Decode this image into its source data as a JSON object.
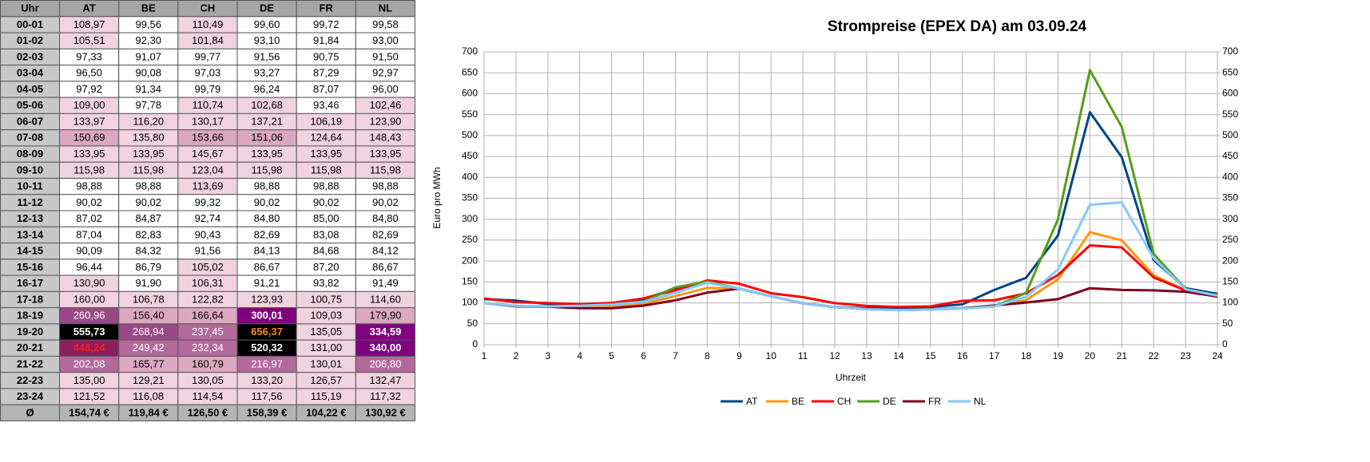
{
  "table": {
    "header": [
      "Uhr",
      "AT",
      "BE",
      "CH",
      "DE",
      "FR",
      "NL"
    ],
    "rows": [
      [
        "00-01",
        "108,97",
        "99,56",
        "110,49",
        "99,60",
        "99,72",
        "99,58"
      ],
      [
        "01-02",
        "105,51",
        "92,30",
        "101,84",
        "93,10",
        "91,84",
        "93,00"
      ],
      [
        "02-03",
        "97,33",
        "91,07",
        "99,77",
        "91,56",
        "90,75",
        "91,50"
      ],
      [
        "03-04",
        "96,50",
        "90,08",
        "97,03",
        "93,27",
        "87,29",
        "92,97"
      ],
      [
        "04-05",
        "97,92",
        "91,34",
        "99,79",
        "96,24",
        "87,07",
        "96,00"
      ],
      [
        "05-06",
        "109,00",
        "97,78",
        "110,74",
        "102,68",
        "93,46",
        "102,46"
      ],
      [
        "06-07",
        "133,97",
        "116,20",
        "130,17",
        "137,21",
        "106,19",
        "123,90"
      ],
      [
        "07-08",
        "150,69",
        "135,80",
        "153,66",
        "151,06",
        "124,64",
        "148,43"
      ],
      [
        "08-09",
        "133,95",
        "133,95",
        "145,67",
        "133,95",
        "133,95",
        "133,95"
      ],
      [
        "09-10",
        "115,98",
        "115,98",
        "123,04",
        "115,98",
        "115,98",
        "115,98"
      ],
      [
        "10-11",
        "98,88",
        "98,88",
        "113,69",
        "98,88",
        "98,88",
        "98,88"
      ],
      [
        "11-12",
        "90,02",
        "90,02",
        "99,32",
        "90,02",
        "90,02",
        "90,02"
      ],
      [
        "12-13",
        "87,02",
        "84,87",
        "92,74",
        "84,80",
        "85,00",
        "84,80"
      ],
      [
        "13-14",
        "87,04",
        "82,83",
        "90,43",
        "82,69",
        "83,08",
        "82,69"
      ],
      [
        "14-15",
        "90,09",
        "84,32",
        "91,56",
        "84,13",
        "84,68",
        "84,12"
      ],
      [
        "15-16",
        "96,44",
        "86,79",
        "105,02",
        "86,67",
        "87,20",
        "86,67"
      ],
      [
        "16-17",
        "130,90",
        "91,90",
        "106,31",
        "91,21",
        "93,82",
        "91,49"
      ],
      [
        "17-18",
        "160,00",
        "106,78",
        "122,82",
        "123,93",
        "100,75",
        "114,60"
      ],
      [
        "18-19",
        "260,96",
        "156,40",
        "166,64",
        "300,01",
        "109,03",
        "179,90"
      ],
      [
        "19-20",
        "555,73",
        "268,94",
        "237,45",
        "656,37",
        "135,05",
        "334,59"
      ],
      [
        "20-21",
        "448,24",
        "249,42",
        "232,34",
        "520,32",
        "131,00",
        "340,00"
      ],
      [
        "21-22",
        "202,08",
        "165,77",
        "160,79",
        "216,97",
        "130,01",
        "206,80"
      ],
      [
        "22-23",
        "135,00",
        "129,21",
        "130,05",
        "133,20",
        "126,57",
        "132,47"
      ],
      [
        "23-24",
        "121,52",
        "116,08",
        "114,54",
        "117,56",
        "115,19",
        "117,32"
      ]
    ],
    "footer": [
      "Ø",
      "154,74 €",
      "119,84 €",
      "126,50 €",
      "158,39 €",
      "104,22 €",
      "130,92 €"
    ],
    "cell_fills": [
      [
        "#f0d3df",
        "#ffffff",
        "#f0d3df",
        "#ffffff",
        "#ffffff",
        "#ffffff"
      ],
      [
        "#f0d3df",
        "#ffffff",
        "#f0d3df",
        "#ffffff",
        "#ffffff",
        "#ffffff"
      ],
      [
        "#ffffff",
        "#ffffff",
        "#ffffff",
        "#ffffff",
        "#ffffff",
        "#ffffff"
      ],
      [
        "#ffffff",
        "#ffffff",
        "#ffffff",
        "#ffffff",
        "#ffffff",
        "#ffffff"
      ],
      [
        "#ffffff",
        "#ffffff",
        "#ffffff",
        "#ffffff",
        "#ffffff",
        "#ffffff"
      ],
      [
        "#f0d3df",
        "#ffffff",
        "#f0d3df",
        "#f0d3df",
        "#ffffff",
        "#f0d3df"
      ],
      [
        "#f0d3df",
        "#f0d3df",
        "#f0d3df",
        "#f0d3df",
        "#f0d3df",
        "#f0d3df"
      ],
      [
        "#dba8c0",
        "#f0d3df",
        "#dba8c0",
        "#dba8c0",
        "#f0d3df",
        "#f0d3df"
      ],
      [
        "#f0d3df",
        "#f0d3df",
        "#f0d3df",
        "#f0d3df",
        "#f0d3df",
        "#f0d3df"
      ],
      [
        "#f0d3df",
        "#f0d3df",
        "#f0d3df",
        "#f0d3df",
        "#f0d3df",
        "#f0d3df"
      ],
      [
        "#ffffff",
        "#ffffff",
        "#f0d3df",
        "#ffffff",
        "#ffffff",
        "#ffffff"
      ],
      [
        "#ffffff",
        "#ffffff",
        "#ffffff",
        "#ffffff",
        "#ffffff",
        "#ffffff"
      ],
      [
        "#ffffff",
        "#ffffff",
        "#ffffff",
        "#ffffff",
        "#ffffff",
        "#ffffff"
      ],
      [
        "#ffffff",
        "#ffffff",
        "#ffffff",
        "#ffffff",
        "#ffffff",
        "#ffffff"
      ],
      [
        "#ffffff",
        "#ffffff",
        "#ffffff",
        "#ffffff",
        "#ffffff",
        "#ffffff"
      ],
      [
        "#ffffff",
        "#ffffff",
        "#f0d3df",
        "#ffffff",
        "#ffffff",
        "#ffffff"
      ],
      [
        "#f0d3df",
        "#ffffff",
        "#f0d3df",
        "#ffffff",
        "#ffffff",
        "#ffffff"
      ],
      [
        "#f0d3df",
        "#f0d3df",
        "#f0d3df",
        "#f0d3df",
        "#f0d3df",
        "#f0d3df"
      ],
      [
        "#9b4888",
        "#dba8c0",
        "#dba8c0",
        "#800080",
        "#f0d3df",
        "#dba8c0"
      ],
      [
        "#000000",
        "#9b4888",
        "#b36a9b",
        "#000000",
        "#f0d3df",
        "#800080"
      ],
      [
        "#8b1e5e",
        "#b36a9b",
        "#b36a9b",
        "#000000",
        "#f0d3df",
        "#800080"
      ],
      [
        "#b36a9b",
        "#dba8c0",
        "#dba8c0",
        "#b36a9b",
        "#f0d3df",
        "#b36a9b"
      ],
      [
        "#f0d3df",
        "#f0d3df",
        "#f0d3df",
        "#f0d3df",
        "#f0d3df",
        "#f0d3df"
      ],
      [
        "#f0d3df",
        "#f0d3df",
        "#f0d3df",
        "#f0d3df",
        "#f0d3df",
        "#f0d3df"
      ]
    ],
    "cell_text_colors": [
      [
        "#000000",
        "#000000",
        "#000000",
        "#000000",
        "#000000",
        "#000000"
      ],
      [
        "#000000",
        "#000000",
        "#000000",
        "#000000",
        "#000000",
        "#000000"
      ],
      [
        "#000000",
        "#000000",
        "#000000",
        "#000000",
        "#000000",
        "#000000"
      ],
      [
        "#000000",
        "#000000",
        "#000000",
        "#000000",
        "#000000",
        "#000000"
      ],
      [
        "#000000",
        "#000000",
        "#000000",
        "#000000",
        "#000000",
        "#000000"
      ],
      [
        "#000000",
        "#000000",
        "#000000",
        "#000000",
        "#000000",
        "#000000"
      ],
      [
        "#000000",
        "#000000",
        "#000000",
        "#000000",
        "#000000",
        "#000000"
      ],
      [
        "#000000",
        "#000000",
        "#000000",
        "#000000",
        "#000000",
        "#000000"
      ],
      [
        "#000000",
        "#000000",
        "#000000",
        "#000000",
        "#000000",
        "#000000"
      ],
      [
        "#000000",
        "#000000",
        "#000000",
        "#000000",
        "#000000",
        "#000000"
      ],
      [
        "#000000",
        "#000000",
        "#000000",
        "#000000",
        "#000000",
        "#000000"
      ],
      [
        "#000000",
        "#000000",
        "#000000",
        "#000000",
        "#000000",
        "#000000"
      ],
      [
        "#000000",
        "#000000",
        "#000000",
        "#000000",
        "#000000",
        "#000000"
      ],
      [
        "#000000",
        "#000000",
        "#000000",
        "#000000",
        "#000000",
        "#000000"
      ],
      [
        "#000000",
        "#000000",
        "#000000",
        "#000000",
        "#000000",
        "#000000"
      ],
      [
        "#000000",
        "#000000",
        "#000000",
        "#000000",
        "#000000",
        "#000000"
      ],
      [
        "#000000",
        "#000000",
        "#000000",
        "#000000",
        "#000000",
        "#000000"
      ],
      [
        "#000000",
        "#000000",
        "#000000",
        "#000000",
        "#000000",
        "#000000"
      ],
      [
        "#ffffff",
        "#000000",
        "#000000",
        "#ffffff",
        "#000000",
        "#000000"
      ],
      [
        "#ffffff",
        "#ffffff",
        "#ffffff",
        "#ff8c1a",
        "#000000",
        "#ffffff"
      ],
      [
        "#ff1a1a",
        "#ffffff",
        "#ffffff",
        "#ffffff",
        "#000000",
        "#ffffff"
      ],
      [
        "#ffffff",
        "#000000",
        "#000000",
        "#ffffff",
        "#000000",
        "#ffffff"
      ],
      [
        "#000000",
        "#000000",
        "#000000",
        "#000000",
        "#000000",
        "#000000"
      ],
      [
        "#000000",
        "#000000",
        "#000000",
        "#000000",
        "#000000",
        "#000000"
      ]
    ]
  },
  "chart_data": {
    "type": "line",
    "title": "Strompreise (EPEX DA) am 03.09.24",
    "y_label": "Euro pro MWh",
    "x_label": "Uhrzeit",
    "x": [
      1,
      2,
      3,
      4,
      5,
      6,
      7,
      8,
      9,
      10,
      11,
      12,
      13,
      14,
      15,
      16,
      17,
      18,
      19,
      20,
      21,
      22,
      23,
      24
    ],
    "xlim": [
      1,
      24
    ],
    "xticks": [
      1,
      2,
      3,
      4,
      5,
      6,
      7,
      8,
      9,
      10,
      11,
      12,
      13,
      14,
      15,
      16,
      17,
      18,
      19,
      20,
      21,
      22,
      23,
      24
    ],
    "ylim": [
      0,
      700
    ],
    "yticks": [
      0,
      50,
      100,
      150,
      200,
      250,
      300,
      350,
      400,
      450,
      500,
      550,
      600,
      650,
      700
    ],
    "y2lim": [
      0,
      700
    ],
    "y2ticks": [
      0,
      50,
      100,
      150,
      200,
      250,
      300,
      350,
      400,
      450,
      500,
      550,
      600,
      650,
      700
    ],
    "grid": true,
    "legend": "bottom",
    "series": [
      {
        "name": "AT",
        "color": "#004586",
        "values": [
          108.97,
          105.51,
          97.33,
          96.5,
          97.92,
          109.0,
          133.97,
          150.69,
          133.95,
          115.98,
          98.88,
          90.02,
          87.02,
          87.04,
          90.09,
          96.44,
          130.9,
          160.0,
          260.96,
          555.73,
          448.24,
          202.08,
          135.0,
          121.52
        ]
      },
      {
        "name": "BE",
        "color": "#ff950e",
        "values": [
          99.56,
          92.3,
          91.07,
          90.08,
          91.34,
          97.78,
          116.2,
          135.8,
          133.95,
          115.98,
          98.88,
          90.02,
          84.87,
          82.83,
          84.32,
          86.79,
          91.9,
          106.78,
          156.4,
          268.94,
          249.42,
          165.77,
          129.21,
          116.08
        ]
      },
      {
        "name": "CH",
        "color": "#ff0000",
        "values": [
          110.49,
          101.84,
          99.77,
          97.03,
          99.79,
          110.74,
          130.17,
          153.66,
          145.67,
          123.04,
          113.69,
          99.32,
          92.74,
          90.43,
          91.56,
          105.02,
          106.31,
          122.82,
          166.64,
          237.45,
          232.34,
          160.79,
          130.05,
          114.54
        ]
      },
      {
        "name": "DE",
        "color": "#579d1c",
        "values": [
          99.6,
          93.1,
          91.56,
          93.27,
          96.24,
          102.68,
          137.21,
          151.06,
          133.95,
          115.98,
          98.88,
          90.02,
          84.8,
          82.69,
          84.13,
          86.67,
          91.21,
          123.93,
          300.01,
          656.37,
          520.32,
          216.97,
          133.2,
          117.56
        ]
      },
      {
        "name": "FR",
        "color": "#7e0021",
        "values": [
          99.72,
          91.84,
          90.75,
          87.29,
          87.07,
          93.46,
          106.19,
          124.64,
          133.95,
          115.98,
          98.88,
          90.02,
          85.0,
          83.08,
          84.68,
          87.2,
          93.82,
          100.75,
          109.03,
          135.05,
          131.0,
          130.01,
          126.57,
          115.19
        ]
      },
      {
        "name": "NL",
        "color": "#83caff",
        "values": [
          99.58,
          93.0,
          91.5,
          92.97,
          96.0,
          102.46,
          123.9,
          148.43,
          133.95,
          115.98,
          98.88,
          90.02,
          84.8,
          82.69,
          84.12,
          86.67,
          91.49,
          114.6,
          179.9,
          334.59,
          340.0,
          206.8,
          132.47,
          117.32
        ]
      }
    ]
  }
}
